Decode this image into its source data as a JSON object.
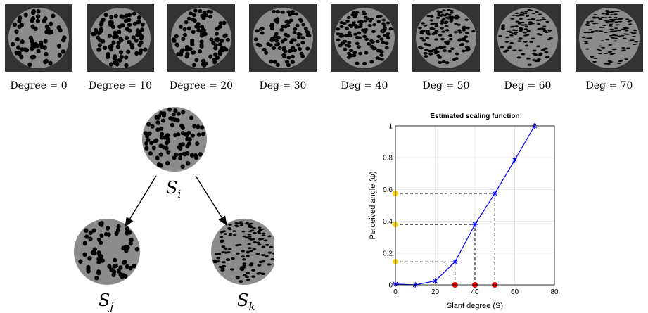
{
  "colors": {
    "tile_background": "#333333",
    "texture_gray": "#8c8c8c",
    "dot_black": "#000000",
    "line_blue": "#0000ff",
    "marker_yellow": "#ffd700",
    "marker_red": "#e60000",
    "grid": "#e0e0e0"
  },
  "tiles": [
    {
      "label": "Degree = 0",
      "slant": 0
    },
    {
      "label": "Degree = 10",
      "slant": 10
    },
    {
      "label": "Degree = 20",
      "slant": 20
    },
    {
      "label": "Deg = 30",
      "slant": 30
    },
    {
      "label": "Deg = 40",
      "slant": 40
    },
    {
      "label": "Deg = 50",
      "slant": 50
    },
    {
      "label": "Deg = 60",
      "slant": 60
    },
    {
      "label": "Deg = 70",
      "slant": 70
    }
  ],
  "diagram": {
    "top_node": {
      "symbol": "S",
      "subscript": "i"
    },
    "left_node": {
      "symbol": "S",
      "subscript": "j"
    },
    "right_node": {
      "symbol": "S",
      "subscript": "k"
    }
  },
  "chart_data": {
    "type": "line",
    "title": "Estimated scaling function",
    "xlabel": "Slant degree (S)",
    "ylabel": "Perceived angle (ψ)",
    "xlim": [
      0,
      80
    ],
    "ylim": [
      0,
      1
    ],
    "xticks": [
      "0",
      "20",
      "40",
      "60",
      "80"
    ],
    "yticks": [
      "0",
      "0.2",
      "0.4",
      "0.6",
      "0.8",
      "1"
    ],
    "grid": true,
    "series": [
      {
        "marker": "*",
        "x": [
          0,
          10,
          20,
          30,
          40,
          50,
          60,
          70
        ],
        "y": [
          0.005,
          0.0,
          0.025,
          0.145,
          0.38,
          0.575,
          0.785,
          1.0
        ]
      }
    ],
    "highlighted_x": [
      30,
      40,
      50
    ],
    "highlighted_y": [
      0.145,
      0.38,
      0.575
    ]
  }
}
